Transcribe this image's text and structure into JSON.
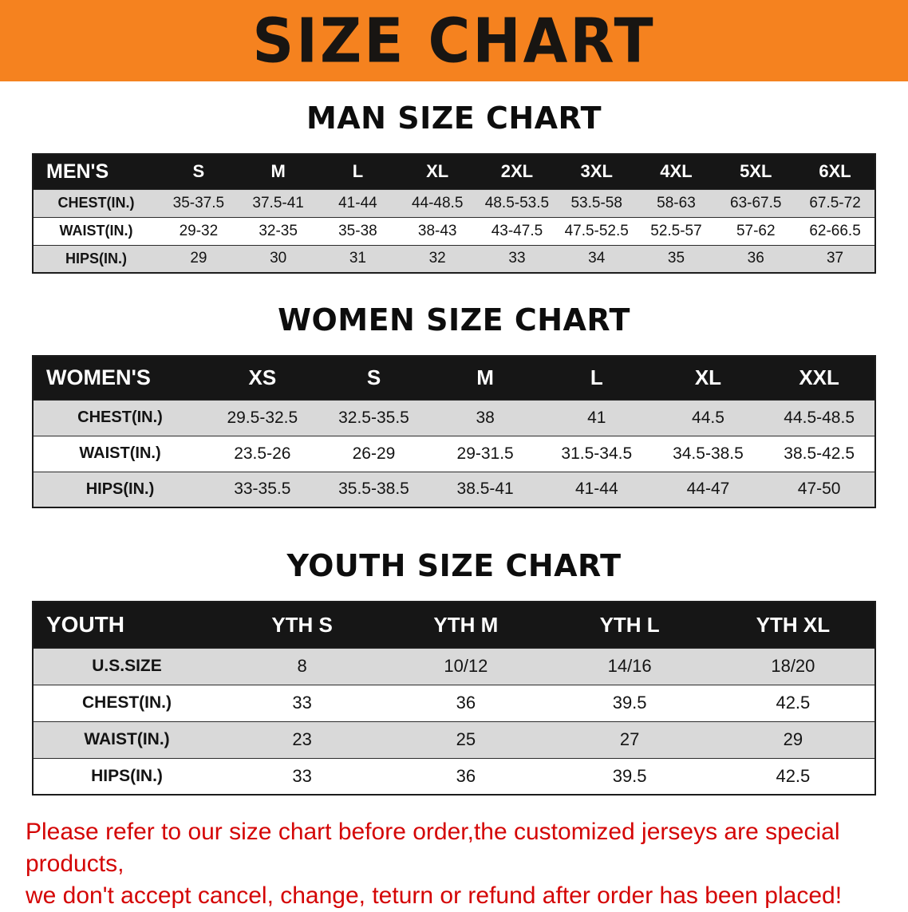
{
  "banner": {
    "title": "SIZE CHART"
  },
  "colors": {
    "banner_orange": "#f5821f",
    "header_black": "#161616",
    "stripe_gray": "#d9d9d9",
    "footer_red": "#d40505"
  },
  "sections": [
    {
      "heading": "MAN SIZE CHART",
      "table": {
        "header": [
          "MEN'S",
          "S",
          "M",
          "L",
          "XL",
          "2XL",
          "3XL",
          "4XL",
          "5XL",
          "6XL"
        ],
        "rows": [
          {
            "label": "CHEST(IN.)",
            "values": [
              "35-37.5",
              "37.5-41",
              "41-44",
              "44-48.5",
              "48.5-53.5",
              "53.5-58",
              "58-63",
              "63-67.5",
              "67.5-72"
            ]
          },
          {
            "label": "WAIST(IN.)",
            "values": [
              "29-32",
              "32-35",
              "35-38",
              "38-43",
              "43-47.5",
              "47.5-52.5",
              "52.5-57",
              "57-62",
              "62-66.5"
            ]
          },
          {
            "label": "HIPS(IN.)",
            "values": [
              "29",
              "30",
              "31",
              "32",
              "33",
              "34",
              "35",
              "36",
              "37"
            ]
          }
        ]
      }
    },
    {
      "heading": "WOMEN SIZE CHART",
      "table": {
        "header": [
          "WOMEN'S",
          "XS",
          "S",
          "M",
          "L",
          "XL",
          "XXL"
        ],
        "rows": [
          {
            "label": "CHEST(IN.)",
            "values": [
              "29.5-32.5",
              "32.5-35.5",
              "38",
              "41",
              "44.5",
              "44.5-48.5"
            ]
          },
          {
            "label": "WAIST(IN.)",
            "values": [
              "23.5-26",
              "26-29",
              "29-31.5",
              "31.5-34.5",
              "34.5-38.5",
              "38.5-42.5"
            ]
          },
          {
            "label": "HIPS(IN.)",
            "values": [
              "33-35.5",
              "35.5-38.5",
              "38.5-41",
              "41-44",
              "44-47",
              "47-50"
            ]
          }
        ]
      }
    },
    {
      "heading": "YOUTH SIZE CHART",
      "table": {
        "header": [
          "YOUTH",
          "YTH S",
          "YTH M",
          "YTH L",
          "YTH XL"
        ],
        "rows": [
          {
            "label": "U.S.SIZE",
            "values": [
              "8",
              "10/12",
              "14/16",
              "18/20"
            ]
          },
          {
            "label": "CHEST(IN.)",
            "values": [
              "33",
              "36",
              "39.5",
              "42.5"
            ]
          },
          {
            "label": "WAIST(IN.)",
            "values": [
              "23",
              "25",
              "27",
              "29"
            ]
          },
          {
            "label": "HIPS(IN.)",
            "values": [
              "33",
              "36",
              "39.5",
              "42.5"
            ]
          }
        ]
      }
    }
  ],
  "footer": {
    "line1": "Please refer to our size chart before order,the customized jerseys are special products,",
    "line2": "we don't accept cancel, change, teturn or refund after order has been placed!"
  }
}
